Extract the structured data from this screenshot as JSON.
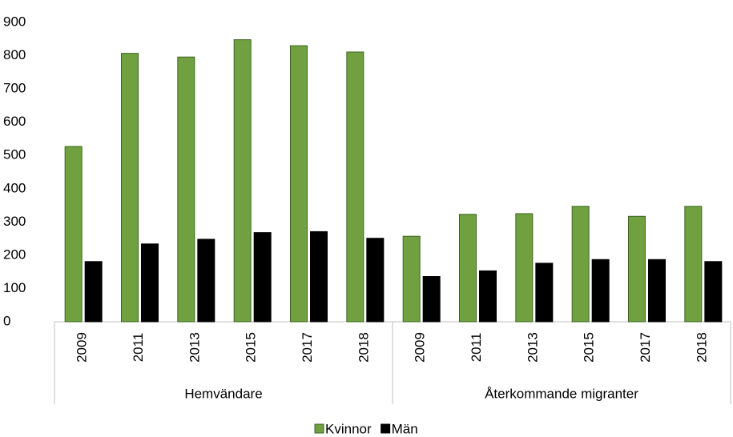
{
  "chart_data": {
    "type": "bar",
    "groups": [
      {
        "name": "Hemvändare",
        "categories": [
          "2009",
          "2011",
          "2013",
          "2015",
          "2017",
          "2018"
        ]
      },
      {
        "name": "Återkommande migranter",
        "categories": [
          "2009",
          "2011",
          "2013",
          "2015",
          "2017",
          "2018"
        ]
      }
    ],
    "series": [
      {
        "name": "Kvinnor",
        "color": "#70a03f",
        "values": [
          527,
          807,
          796,
          848,
          830,
          811,
          257,
          323,
          325,
          347,
          317,
          347
        ]
      },
      {
        "name": "Män",
        "color": "#000000",
        "values": [
          181,
          234,
          248,
          268,
          271,
          251,
          136,
          153,
          176,
          187,
          187,
          181
        ]
      }
    ],
    "ylim": [
      0,
      900
    ],
    "yticks": [
      0,
      100,
      200,
      300,
      400,
      500,
      600,
      700,
      800,
      900
    ],
    "grid": false,
    "legend": "bottom"
  }
}
